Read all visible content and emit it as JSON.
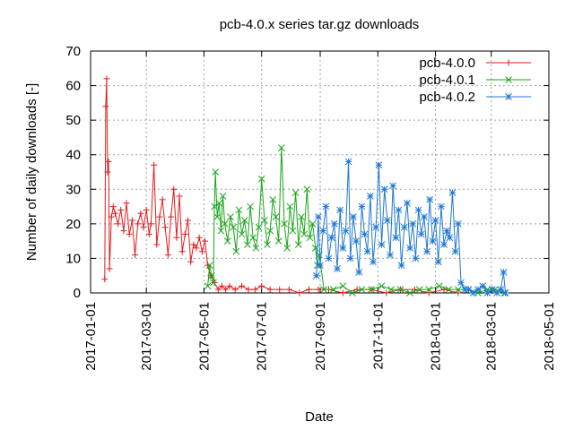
{
  "chart_data": {
    "type": "line",
    "title": "pcb-4.0.x series tar.gz downloads",
    "xlabel": "Date",
    "ylabel": "Number of daily downloads [-]",
    "xlim": [
      "2017-01-01",
      "2018-05-01"
    ],
    "ylim": [
      0,
      70
    ],
    "grid": true,
    "legend_position": "top-right",
    "y_ticks": [
      "0",
      "10",
      "20",
      "30",
      "40",
      "50",
      "60",
      "70"
    ],
    "x_ticks": [
      "2017-01-01",
      "2017-03-01",
      "2017-05-01",
      "2017-07-01",
      "2017-09-01",
      "2017-11-01",
      "2018-01-01",
      "2018-03-01",
      "2018-05-01"
    ],
    "series": [
      {
        "name": "pcb-4.0.0",
        "color": "#e41a1c",
        "marker": "plus",
        "x": [
          "2017-01-16",
          "2017-01-17",
          "2017-01-18",
          "2017-01-19",
          "2017-01-20",
          "2017-01-21",
          "2017-01-23",
          "2017-01-25",
          "2017-01-27",
          "2017-01-30",
          "2017-02-02",
          "2017-02-05",
          "2017-02-08",
          "2017-02-11",
          "2017-02-14",
          "2017-02-17",
          "2017-02-20",
          "2017-02-23",
          "2017-02-26",
          "2017-03-01",
          "2017-03-04",
          "2017-03-06",
          "2017-03-09",
          "2017-03-12",
          "2017-03-15",
          "2017-03-18",
          "2017-03-21",
          "2017-03-24",
          "2017-03-27",
          "2017-03-30",
          "2017-04-02",
          "2017-04-05",
          "2017-04-08",
          "2017-04-11",
          "2017-04-14",
          "2017-04-17",
          "2017-04-20",
          "2017-04-23",
          "2017-04-26",
          "2017-04-29",
          "2017-05-02",
          "2017-05-05",
          "2017-05-08",
          "2017-05-12",
          "2017-05-16",
          "2017-05-20",
          "2017-05-24",
          "2017-05-28",
          "2017-06-03",
          "2017-06-10",
          "2017-06-17",
          "2017-06-24",
          "2017-07-01",
          "2017-07-10",
          "2017-07-20",
          "2017-07-30",
          "2017-08-10",
          "2017-08-20",
          "2017-08-30",
          "2017-09-10",
          "2017-09-25",
          "2017-10-10",
          "2017-10-25",
          "2017-11-10",
          "2017-11-25",
          "2017-12-10",
          "2017-12-25",
          "2018-01-10",
          "2018-01-25"
        ],
        "y": [
          4,
          54,
          62,
          35,
          38,
          7,
          22,
          25,
          23,
          20,
          24,
          18,
          26,
          17,
          21,
          11,
          20,
          23,
          19,
          24,
          17,
          20,
          37,
          14,
          22,
          27,
          19,
          11,
          22,
          30,
          16,
          28,
          12,
          17,
          21,
          9,
          14,
          13,
          16,
          12,
          15,
          8,
          5,
          3,
          1,
          2,
          1,
          2,
          1,
          2,
          1,
          1,
          2,
          1,
          1,
          1,
          0,
          1,
          1,
          1,
          0,
          1,
          1,
          0,
          1,
          1,
          0,
          1,
          0
        ]
      },
      {
        "name": "pcb-4.0.1",
        "color": "#1aa61a",
        "marker": "cross",
        "x": [
          "2017-05-05",
          "2017-05-07",
          "2017-05-09",
          "2017-05-11",
          "2017-05-12",
          "2017-05-13",
          "2017-05-15",
          "2017-05-17",
          "2017-05-19",
          "2017-05-21",
          "2017-05-23",
          "2017-05-26",
          "2017-05-29",
          "2017-06-01",
          "2017-06-04",
          "2017-06-07",
          "2017-06-10",
          "2017-06-13",
          "2017-06-16",
          "2017-06-19",
          "2017-06-22",
          "2017-06-25",
          "2017-06-28",
          "2017-07-01",
          "2017-07-04",
          "2017-07-07",
          "2017-07-10",
          "2017-07-13",
          "2017-07-16",
          "2017-07-19",
          "2017-07-22",
          "2017-07-25",
          "2017-07-28",
          "2017-07-31",
          "2017-08-03",
          "2017-08-06",
          "2017-08-09",
          "2017-08-12",
          "2017-08-15",
          "2017-08-18",
          "2017-08-21",
          "2017-08-24",
          "2017-08-27",
          "2017-08-29",
          "2017-08-31",
          "2017-09-05",
          "2017-09-15",
          "2017-09-25",
          "2017-10-05",
          "2017-10-15",
          "2017-10-25",
          "2017-11-05",
          "2017-11-15",
          "2017-11-25",
          "2017-12-05",
          "2017-12-15",
          "2017-12-25",
          "2018-01-05",
          "2018-01-15",
          "2018-01-25",
          "2018-02-05",
          "2018-02-15",
          "2018-02-25",
          "2018-03-05",
          "2018-03-15"
        ],
        "y": [
          2,
          8,
          5,
          3,
          25,
          35,
          22,
          26,
          18,
          28,
          20,
          15,
          22,
          19,
          12,
          24,
          17,
          21,
          14,
          25,
          16,
          13,
          19,
          33,
          21,
          14,
          18,
          27,
          22,
          15,
          42,
          20,
          13,
          25,
          18,
          29,
          14,
          22,
          17,
          30,
          16,
          20,
          13,
          8,
          11,
          1,
          1,
          2,
          0,
          1,
          1,
          2,
          1,
          1,
          0,
          1,
          1,
          2,
          1,
          1,
          1,
          0,
          1,
          1,
          0
        ]
      },
      {
        "name": "pcb-4.0.2",
        "color": "#1f78d1",
        "marker": "star",
        "x": [
          "2017-08-28",
          "2017-08-30",
          "2017-09-01",
          "2017-09-04",
          "2017-09-07",
          "2017-09-10",
          "2017-09-13",
          "2017-09-16",
          "2017-09-19",
          "2017-09-22",
          "2017-09-25",
          "2017-09-28",
          "2017-10-01",
          "2017-10-03",
          "2017-10-06",
          "2017-10-09",
          "2017-10-12",
          "2017-10-15",
          "2017-10-18",
          "2017-10-21",
          "2017-10-24",
          "2017-10-27",
          "2017-10-30",
          "2017-11-02",
          "2017-11-05",
          "2017-11-08",
          "2017-11-11",
          "2017-11-14",
          "2017-11-17",
          "2017-11-20",
          "2017-11-23",
          "2017-11-26",
          "2017-11-29",
          "2017-12-02",
          "2017-12-05",
          "2017-12-08",
          "2017-12-11",
          "2017-12-14",
          "2017-12-17",
          "2017-12-20",
          "2017-12-23",
          "2017-12-26",
          "2017-12-29",
          "2018-01-01",
          "2018-01-04",
          "2018-01-07",
          "2018-01-10",
          "2018-01-13",
          "2018-01-16",
          "2018-01-19",
          "2018-01-22",
          "2018-01-25",
          "2018-01-28",
          "2018-02-01",
          "2018-02-05",
          "2018-02-10",
          "2018-02-15",
          "2018-02-20",
          "2018-02-25",
          "2018-03-02",
          "2018-03-07",
          "2018-03-11",
          "2018-03-14",
          "2018-03-16"
        ],
        "y": [
          5,
          22,
          8,
          18,
          25,
          10,
          16,
          20,
          7,
          24,
          13,
          18,
          38,
          10,
          22,
          15,
          6,
          25,
          17,
          12,
          28,
          9,
          19,
          37,
          14,
          30,
          21,
          11,
          31,
          16,
          24,
          8,
          19,
          26,
          13,
          20,
          10,
          24,
          17,
          22,
          12,
          27,
          15,
          21,
          9,
          25,
          14,
          18,
          16,
          29,
          12,
          20,
          3,
          1,
          1,
          0,
          1,
          2,
          0,
          1,
          0,
          1,
          6,
          0
        ]
      }
    ]
  }
}
